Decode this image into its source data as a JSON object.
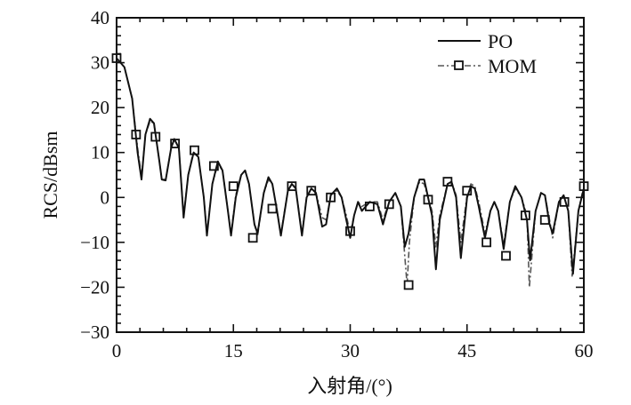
{
  "chart_data": {
    "type": "line",
    "title": "",
    "xlabel": "入射角/(°)",
    "ylabel": "RCS/dBsm",
    "xlim": [
      0,
      60
    ],
    "ylim": [
      -30,
      40
    ],
    "xticks": [
      "0",
      "15",
      "30",
      "45",
      "60"
    ],
    "yticks": [
      "40",
      "30",
      "20",
      "10",
      "0",
      "−10",
      "−20",
      "−30"
    ],
    "grid": false,
    "legend_position": "top-right",
    "series": [
      {
        "name": "PO",
        "color": "#111111",
        "style": "solid",
        "x": [
          0,
          1,
          2,
          2.7,
          3.2,
          3.7,
          4.3,
          4.8,
          5.5,
          5.8,
          6.3,
          7,
          7.4,
          8,
          8.6,
          9.2,
          9.9,
          10.5,
          11.2,
          11.6,
          12.3,
          13,
          13.6,
          14.3,
          14.7,
          15.3,
          16,
          16.5,
          17,
          17.7,
          18.1,
          18.9,
          19.5,
          20,
          20.6,
          21.1,
          22,
          22.5,
          23,
          23.8,
          24.4,
          25,
          25.6,
          26.4,
          26.9,
          27.5,
          28.3,
          28.9,
          29.5,
          30,
          30.5,
          31,
          31.5,
          32.5,
          33.5,
          34.2,
          35,
          35.8,
          36.5,
          37,
          37.5,
          38.2,
          38.9,
          39.5,
          40.5,
          41,
          41.5,
          42.5,
          43,
          43.6,
          44.2,
          45,
          45.5,
          46,
          46.5,
          47.3,
          48,
          48.5,
          49,
          49.7,
          50.5,
          51.2,
          52,
          52.7,
          53.1,
          53.8,
          54.5,
          55,
          55.6,
          56,
          56.8,
          57.4,
          58,
          58.6,
          59.3,
          60
        ],
        "y": [
          31,
          29,
          22,
          10,
          4,
          14,
          17.5,
          16.5,
          8,
          4,
          3.8,
          11,
          13,
          11,
          -4.5,
          5,
          10,
          9,
          0,
          -8.5,
          3,
          8,
          6,
          -3,
          -8.5,
          0,
          5,
          6,
          3,
          -6,
          -8,
          1,
          4.5,
          3,
          -3,
          -8.5,
          1.5,
          3,
          2,
          -8.5,
          0,
          2,
          1,
          -6.5,
          -6,
          0.5,
          2,
          0,
          -5,
          -9,
          -4,
          -1,
          -3,
          -1,
          -1.5,
          -6,
          -1,
          1,
          -2,
          -11,
          -8,
          0,
          4,
          4,
          -4,
          -16,
          -5,
          3,
          3.5,
          0,
          -13.5,
          0,
          2.5,
          2,
          -2,
          -9,
          -3,
          -1,
          -3,
          -11.5,
          -1,
          2.5,
          0,
          -5,
          -14,
          -3,
          1,
          0.5,
          -6,
          -8,
          -1,
          0.5,
          -3,
          -17,
          -3,
          2
        ]
      },
      {
        "name": "MOM",
        "color": "#555555",
        "style": "dash-dot",
        "marker": "square",
        "x": [
          0,
          1,
          2,
          2.7,
          3.2,
          3.7,
          4.3,
          4.8,
          5.5,
          5.8,
          6.3,
          7,
          7.4,
          8,
          8.6,
          9.2,
          9.9,
          10.5,
          11.2,
          11.6,
          12.3,
          13,
          13.6,
          14.3,
          14.7,
          15.3,
          16,
          16.5,
          17,
          17.7,
          18.1,
          18.9,
          19.5,
          20,
          20.6,
          21.1,
          22,
          22.5,
          23,
          23.8,
          24.4,
          25,
          25.6,
          26.4,
          26.9,
          27.5,
          28.3,
          28.9,
          29.5,
          30,
          30.5,
          31,
          31.5,
          32.5,
          33.5,
          34.2,
          35,
          35.8,
          36.5,
          37.3,
          37.6,
          38.2,
          38.9,
          39.5,
          40.5,
          41,
          41.5,
          42.5,
          43,
          43.6,
          44.2,
          45,
          45.5,
          46,
          46.5,
          47.3,
          48,
          48.5,
          49,
          49.7,
          50.5,
          51.2,
          52,
          52.7,
          53,
          53.8,
          54.5,
          55,
          55.6,
          56,
          56.8,
          57.4,
          58,
          58.5,
          59.3,
          60
        ],
        "y": [
          31,
          29,
          22,
          11,
          4.5,
          14,
          17,
          16.5,
          8,
          4,
          4,
          11,
          12.5,
          11,
          -4,
          5,
          10.5,
          9,
          0,
          -8,
          3,
          7.5,
          6,
          -3,
          -8,
          0.5,
          5,
          6,
          3,
          -6,
          -8.5,
          1,
          4,
          3,
          -3,
          -8,
          1.5,
          3,
          2,
          -8,
          0,
          2,
          1,
          -4.5,
          -5,
          0,
          1.5,
          0,
          -4,
          -8,
          -4,
          -1,
          -2,
          -1,
          -1,
          -5,
          -1,
          1,
          -2,
          -19.5,
          -10,
          0,
          3.5,
          3,
          -3,
          -11,
          -4,
          3,
          3.5,
          0.5,
          -10,
          0.5,
          3,
          2.5,
          -1,
          -8,
          -3,
          -1,
          -3,
          -10.5,
          -1,
          2,
          0,
          -4,
          -20,
          -3,
          1,
          0.5,
          -5,
          -9,
          -1,
          0.5,
          -3,
          -17.5,
          -3,
          2.5
        ],
        "marker_points": {
          "x": [
            0,
            2.5,
            5,
            7.5,
            10,
            12.5,
            15,
            17.5,
            20,
            22.5,
            25,
            27.5,
            30,
            32.5,
            35,
            37.5,
            40,
            42.5,
            45,
            47.5,
            50,
            52.5,
            55,
            57.5,
            60
          ],
          "y": [
            31,
            14,
            13.5,
            12,
            10.5,
            7,
            2.5,
            -9,
            -2.5,
            2.5,
            1.5,
            0,
            -7.5,
            -2,
            -1.5,
            -19.5,
            -0.5,
            3.5,
            1.5,
            -10,
            -13,
            -4,
            -5,
            -1,
            2.5
          ]
        }
      }
    ]
  }
}
